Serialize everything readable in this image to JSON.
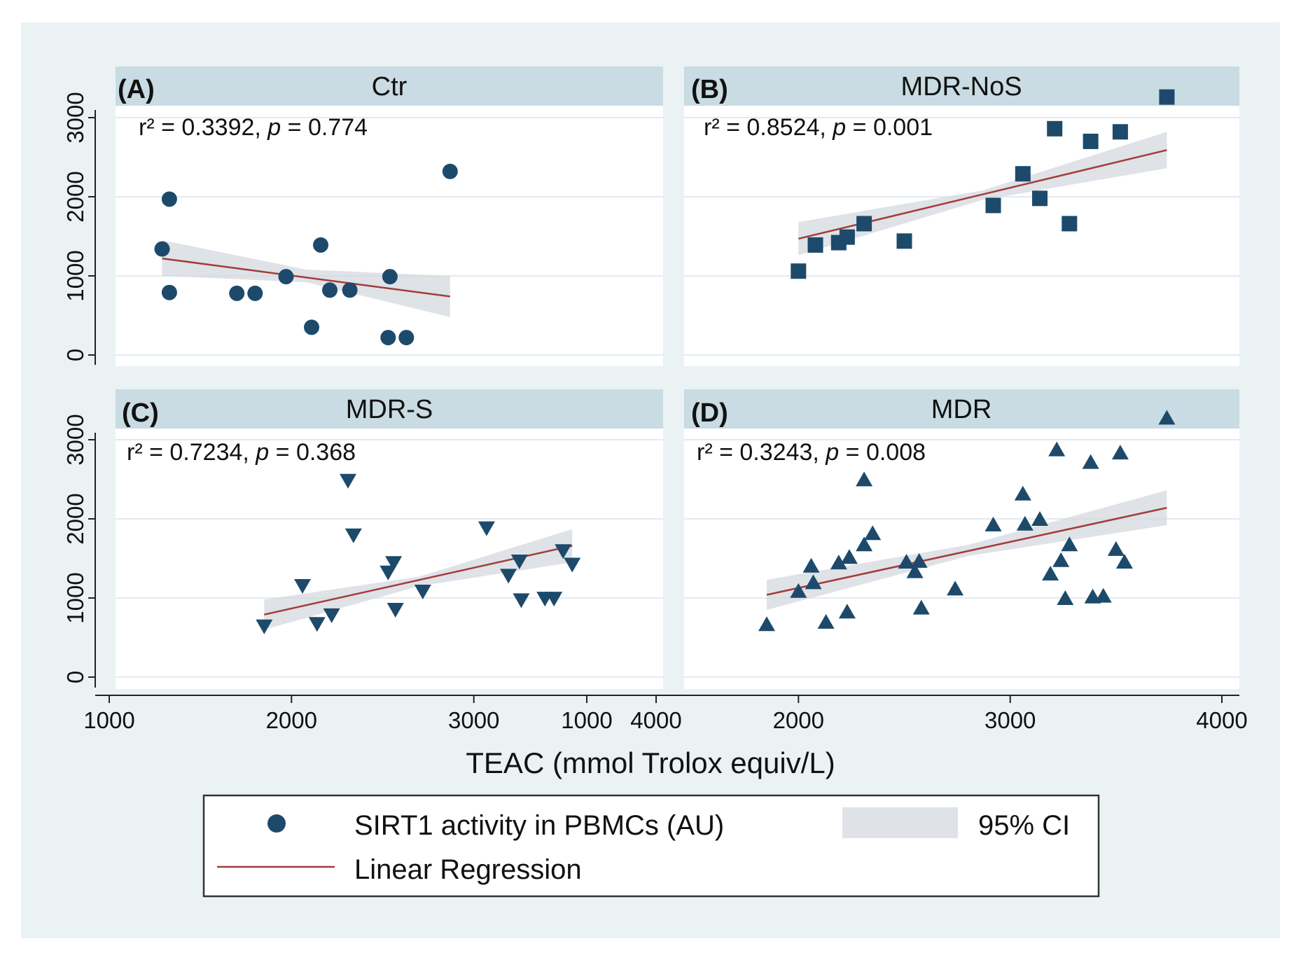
{
  "chart_data": {
    "type": "scatter",
    "xlabel": "TEAC (mmol Trolox equiv/L)",
    "ylabel": "",
    "xlim": [
      1000,
      4000
    ],
    "ylim": [
      0,
      3300
    ],
    "x_ticks": [
      1000,
      2000,
      3000,
      4000
    ],
    "x_tick_labels": [
      "1000",
      "2000",
      "3000",
      "4000"
    ],
    "y_ticks": [
      0,
      1000,
      2000,
      3000
    ],
    "y_tick_labels": [
      "0",
      "1000",
      "2000",
      "3000"
    ],
    "legend": {
      "placement": "bottom-center",
      "items": [
        {
          "kind": "marker",
          "label": "SIRT1 activity in PBMCs (AU)"
        },
        {
          "kind": "band",
          "label": "95% CI"
        },
        {
          "kind": "line",
          "label": "Linear Regression"
        }
      ]
    },
    "panels": [
      {
        "id": "A",
        "tag": "(A)",
        "title": "Ctr",
        "marker": "circle",
        "stat_r2_prefix": "r² = 0.3392, ",
        "stat_p_symbol": "p",
        "stat_p_value": " = 0.774",
        "points": [
          [
            1290,
            1340
          ],
          [
            1330,
            1970
          ],
          [
            1330,
            790
          ],
          [
            1700,
            780
          ],
          [
            1800,
            780
          ],
          [
            1970,
            990
          ],
          [
            2110,
            350
          ],
          [
            2160,
            1390
          ],
          [
            2210,
            820
          ],
          [
            2320,
            820
          ],
          [
            2530,
            220
          ],
          [
            2540,
            990
          ],
          [
            2630,
            220
          ],
          [
            2870,
            2320
          ]
        ],
        "fit": [
          [
            1290,
            1220
          ],
          [
            2870,
            740
          ]
        ],
        "ci_upper": [
          [
            1290,
            1450
          ],
          [
            2080,
            1080
          ],
          [
            2870,
            1000
          ]
        ],
        "ci_lower": [
          [
            1290,
            1000
          ],
          [
            2080,
            920
          ],
          [
            2870,
            480
          ]
        ]
      },
      {
        "id": "B",
        "tag": "(B)",
        "title": "MDR-NoS",
        "marker": "square",
        "stat_r2_prefix": "r² = 0.8524, ",
        "stat_p_symbol": "p",
        "stat_p_value": " = 0.001",
        "points": [
          [
            2000,
            1060
          ],
          [
            2080,
            1390
          ],
          [
            2190,
            1420
          ],
          [
            2230,
            1490
          ],
          [
            2310,
            1660
          ],
          [
            2500,
            1440
          ],
          [
            2920,
            1890
          ],
          [
            3060,
            2290
          ],
          [
            3140,
            1980
          ],
          [
            3210,
            2860
          ],
          [
            3280,
            1660
          ],
          [
            3380,
            2700
          ],
          [
            3520,
            2820
          ],
          [
            3740,
            3260
          ]
        ],
        "fit": [
          [
            2000,
            1470
          ],
          [
            3740,
            2590
          ]
        ],
        "ci_upper": [
          [
            2000,
            1680
          ],
          [
            2870,
            2080
          ],
          [
            3740,
            2820
          ]
        ],
        "ci_lower": [
          [
            2000,
            1260
          ],
          [
            2870,
            1960
          ],
          [
            3740,
            2360
          ]
        ]
      },
      {
        "id": "C",
        "tag": "(C)",
        "title": "MDR-S",
        "marker": "triangle-down",
        "stat_r2_prefix": "r² = 0.7234, ",
        "stat_p_symbol": "p",
        "stat_p_value": " = 0.368",
        "points": [
          [
            1850,
            640
          ],
          [
            2060,
            1150
          ],
          [
            2140,
            670
          ],
          [
            2220,
            780
          ],
          [
            2310,
            2480
          ],
          [
            2340,
            1790
          ],
          [
            2530,
            1320
          ],
          [
            2560,
            1440
          ],
          [
            2570,
            850
          ],
          [
            2720,
            1080
          ],
          [
            3070,
            1880
          ],
          [
            3190,
            1280
          ],
          [
            3250,
            1460
          ],
          [
            3260,
            970
          ],
          [
            3390,
            990
          ],
          [
            3440,
            990
          ],
          [
            3490,
            1590
          ],
          [
            3540,
            1420
          ]
        ],
        "fit": [
          [
            1850,
            790
          ],
          [
            3540,
            1660
          ]
        ],
        "ci_upper": [
          [
            1850,
            980
          ],
          [
            2700,
            1270
          ],
          [
            3540,
            1870
          ]
        ],
        "ci_lower": [
          [
            1850,
            600
          ],
          [
            2700,
            1150
          ],
          [
            3540,
            1450
          ]
        ]
      },
      {
        "id": "D",
        "tag": "(D)",
        "title": "MDR",
        "marker": "triangle-up",
        "stat_r2_prefix": "r² = 0.3243, ",
        "stat_p_symbol": "p",
        "stat_p_value": " = 0.008",
        "points": [
          [
            1850,
            670
          ],
          [
            2000,
            1090
          ],
          [
            2060,
            1410
          ],
          [
            2070,
            1200
          ],
          [
            2130,
            700
          ],
          [
            2190,
            1450
          ],
          [
            2230,
            830
          ],
          [
            2240,
            1520
          ],
          [
            2310,
            2500
          ],
          [
            2310,
            1680
          ],
          [
            2350,
            1820
          ],
          [
            2510,
            1460
          ],
          [
            2550,
            1340
          ],
          [
            2570,
            1470
          ],
          [
            2580,
            880
          ],
          [
            2740,
            1120
          ],
          [
            2920,
            1930
          ],
          [
            3060,
            2320
          ],
          [
            3070,
            1940
          ],
          [
            3140,
            2000
          ],
          [
            3190,
            1310
          ],
          [
            3220,
            2880
          ],
          [
            3240,
            1480
          ],
          [
            3260,
            1000
          ],
          [
            3280,
            1680
          ],
          [
            3380,
            2720
          ],
          [
            3390,
            1020
          ],
          [
            3440,
            1030
          ],
          [
            3500,
            1620
          ],
          [
            3520,
            2840
          ],
          [
            3540,
            1460
          ],
          [
            3740,
            3280
          ]
        ],
        "fit": [
          [
            1850,
            1040
          ],
          [
            3740,
            2140
          ]
        ],
        "ci_upper": [
          [
            1850,
            1230
          ],
          [
            2800,
            1670
          ],
          [
            3740,
            2360
          ]
        ],
        "ci_lower": [
          [
            1850,
            850
          ],
          [
            2800,
            1530
          ],
          [
            3740,
            1920
          ]
        ]
      }
    ]
  }
}
